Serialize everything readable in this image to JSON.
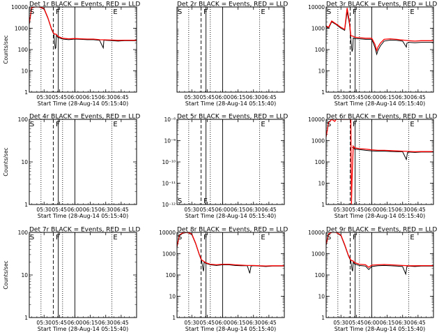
{
  "figure": {
    "marker_labels": [
      "S",
      "F",
      "E"
    ]
  },
  "chart_data": [
    {
      "type": "line",
      "title": "Det 1r BLACK = Events, RED = LLD",
      "xlabel": "Start Time (28-Aug-14 05:15:40)",
      "ylabel": "Counts/sec",
      "xlim": [
        5.26,
        7.0
      ],
      "xticks": [
        5.5,
        5.75,
        6.0,
        6.25,
        6.5,
        6.75
      ],
      "xticklabels": [
        "05:30",
        "05:45",
        "06:00",
        "06:15",
        "06:30",
        "06:45"
      ],
      "yscale": "log",
      "ylim": [
        1,
        10000
      ],
      "yticks": [
        1,
        10,
        100,
        1000,
        10000
      ],
      "yticklabels": [
        "1",
        "10",
        "100",
        "1000",
        "10000"
      ],
      "lines": [
        5.45,
        5.65,
        5.73,
        5.8,
        6.0,
        6.6
      ],
      "markers": [
        5.27,
        5.69,
        6.62
      ],
      "series": [
        {
          "name": "Events",
          "color": "#000000",
          "x": [
            5.26,
            5.3,
            5.35,
            5.42,
            5.5,
            5.56,
            5.62,
            5.66,
            5.68,
            5.69,
            5.7,
            5.72,
            5.8,
            5.9,
            6.0,
            6.1,
            6.2,
            6.3,
            6.4,
            6.46,
            6.47,
            6.5,
            6.6,
            6.7,
            6.8,
            7.0
          ],
          "values": [
            1500,
            9000,
            10000,
            10000,
            8000,
            3000,
            900,
            500,
            110,
            120,
            500,
            380,
            310,
            290,
            310,
            300,
            290,
            290,
            270,
            120,
            280,
            270,
            260,
            250,
            260,
            260
          ]
        },
        {
          "name": "LLD",
          "color": "#ff0000",
          "x": [
            5.26,
            5.3,
            5.35,
            5.42,
            5.5,
            5.56,
            5.62,
            5.66,
            5.7,
            5.72,
            5.8,
            5.9,
            6.0,
            6.1,
            6.2,
            6.3,
            6.4,
            6.5,
            6.6,
            6.7,
            6.8,
            7.0
          ],
          "values": [
            1700,
            9500,
            10000,
            10000,
            8500,
            3200,
            950,
            550,
            520,
            420,
            340,
            320,
            330,
            320,
            310,
            310,
            290,
            285,
            280,
            270,
            275,
            275
          ]
        }
      ]
    },
    {
      "type": "line",
      "title": "Det 2r BLACK = Events, RED = LLD",
      "xlabel": "Start Time (28-Aug-14 05:15:40)",
      "ylabel": "",
      "xlim": [
        5.26,
        7.0
      ],
      "xticks": [
        5.5,
        5.75,
        6.0,
        6.25,
        6.5,
        6.75
      ],
      "xticklabels": [
        "05:30",
        "05:45",
        "06:00",
        "06:15",
        "06:30",
        "06:45"
      ],
      "yscale": "log",
      "ylim": [
        1,
        10000
      ],
      "yticks": [],
      "yticklabels": [],
      "lines": [
        5.45,
        5.65,
        5.73,
        5.8,
        6.0,
        6.6
      ],
      "markers": [
        5.27,
        5.69,
        6.62
      ],
      "series": []
    },
    {
      "type": "line",
      "title": "Det 3r BLACK = Events, RED = LLD",
      "xlabel": "Start Time (28-Aug-14 05:15:40)",
      "ylabel": "",
      "xlim": [
        5.26,
        7.0
      ],
      "xticks": [
        5.5,
        5.75,
        6.0,
        6.25,
        6.5,
        6.75
      ],
      "xticklabels": [
        "05:30",
        "05:45",
        "06:00",
        "06:15",
        "06:30",
        "06:45"
      ],
      "yscale": "log",
      "ylim": [
        1,
        10000
      ],
      "yticks": [
        1,
        10,
        100,
        1000,
        10000
      ],
      "yticklabels": [
        "1",
        "10",
        "100",
        "1000",
        "10000"
      ],
      "lines": [
        5.45,
        5.65,
        5.73,
        5.8,
        6.0,
        6.6
      ],
      "markers": [
        5.27,
        5.69,
        6.62
      ],
      "series": [
        {
          "name": "Events",
          "color": "#000000",
          "x": [
            5.26,
            5.3,
            5.35,
            5.42,
            5.5,
            5.56,
            5.6,
            5.64,
            5.66,
            5.68,
            5.69,
            5.7,
            5.72,
            5.8,
            5.9,
            6.0,
            6.05,
            6.08,
            6.1,
            6.14,
            6.2,
            6.3,
            6.4,
            6.5,
            6.56,
            6.57,
            6.6,
            6.7,
            6.8,
            7.0
          ],
          "values": [
            1200,
            1000,
            2000,
            1500,
            1000,
            800,
            6000,
            1500,
            300,
            80,
            100,
            350,
            330,
            320,
            300,
            300,
            130,
            60,
            90,
            150,
            250,
            280,
            270,
            250,
            130,
            200,
            220,
            210,
            220,
            220
          ]
        },
        {
          "name": "LLD",
          "color": "#ff0000",
          "x": [
            5.26,
            5.3,
            5.35,
            5.42,
            5.5,
            5.56,
            5.6,
            5.64,
            5.66,
            5.7,
            5.72,
            5.8,
            5.9,
            6.0,
            6.05,
            6.08,
            6.1,
            6.14,
            6.2,
            6.3,
            6.4,
            6.5,
            6.6,
            6.7,
            6.8,
            7.0
          ],
          "values": [
            1300,
            1100,
            2200,
            1600,
            1100,
            900,
            9000,
            1800,
            450,
            420,
            380,
            360,
            340,
            340,
            180,
            90,
            130,
            200,
            300,
            320,
            300,
            280,
            260,
            250,
            260,
            260
          ]
        }
      ]
    },
    {
      "type": "line",
      "title": "Det 4r BLACK = Events, RED = LLD",
      "xlabel": "Start Time (28-Aug-14 05:15:40)",
      "ylabel": "Counts/sec",
      "xlim": [
        5.26,
        7.0
      ],
      "xticks": [
        5.5,
        5.75,
        6.0,
        6.25,
        6.5,
        6.75
      ],
      "xticklabels": [
        "05:30",
        "05:45",
        "06:00",
        "06:15",
        "06:30",
        "06:45"
      ],
      "yscale": "log",
      "ylim": [
        1,
        100
      ],
      "yticks": [
        1,
        10,
        100
      ],
      "yticklabels": [
        "1",
        "10",
        "100"
      ],
      "lines": [
        5.45,
        5.65,
        5.73,
        5.8,
        6.0,
        6.6
      ],
      "markers": [
        5.27,
        5.69,
        6.62
      ],
      "series": []
    },
    {
      "type": "line",
      "title": "Det 5r BLACK = Events, RED = LLD",
      "xlabel": "Start Time (28-Aug-14 05:15:40)",
      "ylabel": "",
      "xlim": [
        5.26,
        7.0
      ],
      "xticks": [
        5.5,
        5.75,
        6.0,
        6.25,
        6.5,
        6.75
      ],
      "xticklabels": [
        "05:30",
        "05:45",
        "06:00",
        "06:15",
        "06:30",
        "06:45"
      ],
      "yscale": "log",
      "ylim": [
        1e-12,
        1e-08
      ],
      "yticks": [
        1e-12,
        1e-11,
        1e-10,
        1e-09,
        1e-08
      ],
      "yticklabels": [
        "10⁻¹²",
        "10⁻¹¹",
        "10⁻¹⁰",
        "10⁻⁹",
        "10⁻⁸"
      ],
      "lines": [
        5.45,
        5.65,
        5.73,
        5.8,
        6.0,
        6.6
      ],
      "markers": [
        5.27,
        5.69,
        6.62
      ],
      "series": []
    },
    {
      "type": "line",
      "title": "Det 6r BLACK = Events, RED = LLD",
      "xlabel": "Start Time (28-Aug-14 05:15:40)",
      "ylabel": "",
      "xlim": [
        5.26,
        7.0
      ],
      "xticks": [
        5.5,
        5.75,
        6.0,
        6.25,
        6.5,
        6.75
      ],
      "xticklabels": [
        "05:30",
        "05:45",
        "06:00",
        "06:15",
        "06:30",
        "06:45"
      ],
      "yscale": "log",
      "ylim": [
        1,
        10000
      ],
      "yticks": [
        1,
        10,
        100,
        1000,
        10000
      ],
      "yticklabels": [
        "1",
        "10",
        "100",
        "1000",
        "10000"
      ],
      "lines": [
        5.45,
        5.65,
        5.73,
        5.8,
        6.0,
        6.6
      ],
      "markers": [
        5.27,
        5.69,
        6.62
      ],
      "series": [
        {
          "name": "Events",
          "color": "#000000",
          "x": [
            5.68,
            5.7,
            5.72,
            5.8,
            5.9,
            6.0,
            6.1,
            6.2,
            6.3,
            6.4,
            6.5,
            6.56,
            6.58,
            6.6,
            6.7,
            6.8,
            7.0
          ],
          "values": [
            480,
            480,
            400,
            380,
            350,
            330,
            320,
            320,
            310,
            300,
            300,
            130,
            280,
            290,
            280,
            290,
            290
          ]
        },
        {
          "name": "LLD",
          "color": "#ff0000",
          "x": [
            5.26,
            5.3,
            5.35,
            5.4,
            5.42,
            5.5,
            5.6,
            5.66,
            5.67,
            5.68,
            5.7,
            5.72,
            5.8,
            5.9,
            6.0,
            6.1,
            6.2,
            6.3,
            6.4,
            6.5,
            6.6,
            6.7,
            6.8,
            7.0
          ],
          "values": [
            1500,
            7000,
            10000,
            8000,
            10000,
            10000,
            10000,
            10000,
            1,
            15,
            550,
            460,
            420,
            400,
            370,
            350,
            350,
            340,
            330,
            320,
            310,
            300,
            305,
            305
          ]
        }
      ]
    },
    {
      "type": "line",
      "title": "Det 7r BLACK = Events, RED = LLD",
      "xlabel": "Start Time (28-Aug-14 05:15:40)",
      "ylabel": "Counts/sec",
      "xlim": [
        5.26,
        7.0
      ],
      "xticks": [
        5.5,
        5.75,
        6.0,
        6.25,
        6.5,
        6.75
      ],
      "xticklabels": [
        "05:30",
        "05:45",
        "06:00",
        "06:15",
        "06:30",
        "06:45"
      ],
      "yscale": "log",
      "ylim": [
        1,
        100
      ],
      "yticks": [
        1,
        10,
        100
      ],
      "yticklabels": [
        "1",
        "10",
        "100"
      ],
      "lines": [
        5.45,
        5.65,
        5.73,
        5.8,
        6.0,
        6.6
      ],
      "markers": [
        5.27,
        5.69,
        6.62
      ],
      "series": []
    },
    {
      "type": "line",
      "title": "Det 8r BLACK = Events, RED = LLD",
      "xlabel": "Start Time (28-Aug-14 05:15:40)",
      "ylabel": "",
      "xlim": [
        5.26,
        7.0
      ],
      "xticks": [
        5.5,
        5.75,
        6.0,
        6.25,
        6.5,
        6.75
      ],
      "xticklabels": [
        "05:30",
        "05:45",
        "06:00",
        "06:15",
        "06:30",
        "06:45"
      ],
      "yscale": "log",
      "ylim": [
        1,
        10000
      ],
      "yticks": [
        1,
        10,
        100,
        1000,
        10000
      ],
      "yticklabels": [
        "1",
        "10",
        "100",
        "1000",
        "10000"
      ],
      "lines": [
        5.45,
        5.65,
        5.73,
        5.8,
        6.0,
        6.6
      ],
      "markers": [
        5.27,
        5.69,
        6.62
      ],
      "series": [
        {
          "name": "Events",
          "color": "#000000",
          "x": [
            5.26,
            5.3,
            5.35,
            5.42,
            5.5,
            5.56,
            5.62,
            5.66,
            5.68,
            5.69,
            5.7,
            5.72,
            5.8,
            5.9,
            6.0,
            6.1,
            6.2,
            6.3,
            6.4,
            6.44,
            6.46,
            6.5,
            6.6,
            6.7,
            6.8,
            7.0
          ],
          "values": [
            2000,
            7000,
            9000,
            10000,
            8000,
            3000,
            900,
            450,
            200,
            150,
            400,
            360,
            300,
            280,
            300,
            300,
            280,
            270,
            270,
            120,
            260,
            270,
            260,
            250,
            260,
            260
          ]
        },
        {
          "name": "LLD",
          "color": "#ff0000",
          "x": [
            5.26,
            5.3,
            5.35,
            5.42,
            5.5,
            5.56,
            5.62,
            5.66,
            5.7,
            5.72,
            5.8,
            5.9,
            6.0,
            6.1,
            6.2,
            6.3,
            6.4,
            6.5,
            6.6,
            6.7,
            6.8,
            7.0
          ],
          "values": [
            2200,
            7500,
            9500,
            10000,
            8500,
            3200,
            950,
            500,
            430,
            380,
            320,
            300,
            320,
            320,
            300,
            290,
            280,
            280,
            270,
            265,
            270,
            270
          ]
        }
      ]
    },
    {
      "type": "line",
      "title": "Det 9r BLACK = Events, RED = LLD",
      "xlabel": "Start Time (28-Aug-14 05:15:40)",
      "ylabel": "",
      "xlim": [
        5.26,
        7.0
      ],
      "xticks": [
        5.5,
        5.75,
        6.0,
        6.25,
        6.5,
        6.75
      ],
      "xticklabels": [
        "05:30",
        "05:45",
        "06:00",
        "06:15",
        "06:30",
        "06:45"
      ],
      "yscale": "log",
      "ylim": [
        1,
        10000
      ],
      "yticks": [
        1,
        10,
        100,
        1000,
        10000
      ],
      "yticklabels": [
        "1",
        "10",
        "100",
        "1000",
        "10000"
      ],
      "lines": [
        5.45,
        5.65,
        5.73,
        5.8,
        6.0,
        6.6
      ],
      "markers": [
        5.27,
        5.69,
        6.62
      ],
      "series": [
        {
          "name": "Events",
          "color": "#000000",
          "x": [
            5.26,
            5.3,
            5.35,
            5.42,
            5.5,
            5.56,
            5.62,
            5.66,
            5.68,
            5.69,
            5.7,
            5.72,
            5.8,
            5.9,
            5.95,
            6.0,
            6.1,
            6.2,
            6.3,
            6.4,
            6.5,
            6.55,
            6.57,
            6.6,
            6.7,
            6.8,
            7.0
          ],
          "values": [
            2500,
            8000,
            10000,
            10000,
            7000,
            2500,
            800,
            450,
            180,
            150,
            400,
            330,
            280,
            260,
            180,
            250,
            270,
            280,
            270,
            260,
            250,
            110,
            250,
            260,
            250,
            260,
            260
          ]
        },
        {
          "name": "LLD",
          "color": "#ff0000",
          "x": [
            5.26,
            5.3,
            5.35,
            5.42,
            5.5,
            5.56,
            5.62,
            5.66,
            5.7,
            5.72,
            5.8,
            5.9,
            5.95,
            6.0,
            6.1,
            6.2,
            6.3,
            6.4,
            6.5,
            6.6,
            6.7,
            6.8,
            7.0
          ],
          "values": [
            2800,
            8500,
            10000,
            10000,
            7500,
            2700,
            850,
            500,
            450,
            380,
            320,
            300,
            230,
            290,
            300,
            310,
            300,
            290,
            280,
            270,
            270,
            275,
            275
          ]
        }
      ]
    }
  ]
}
